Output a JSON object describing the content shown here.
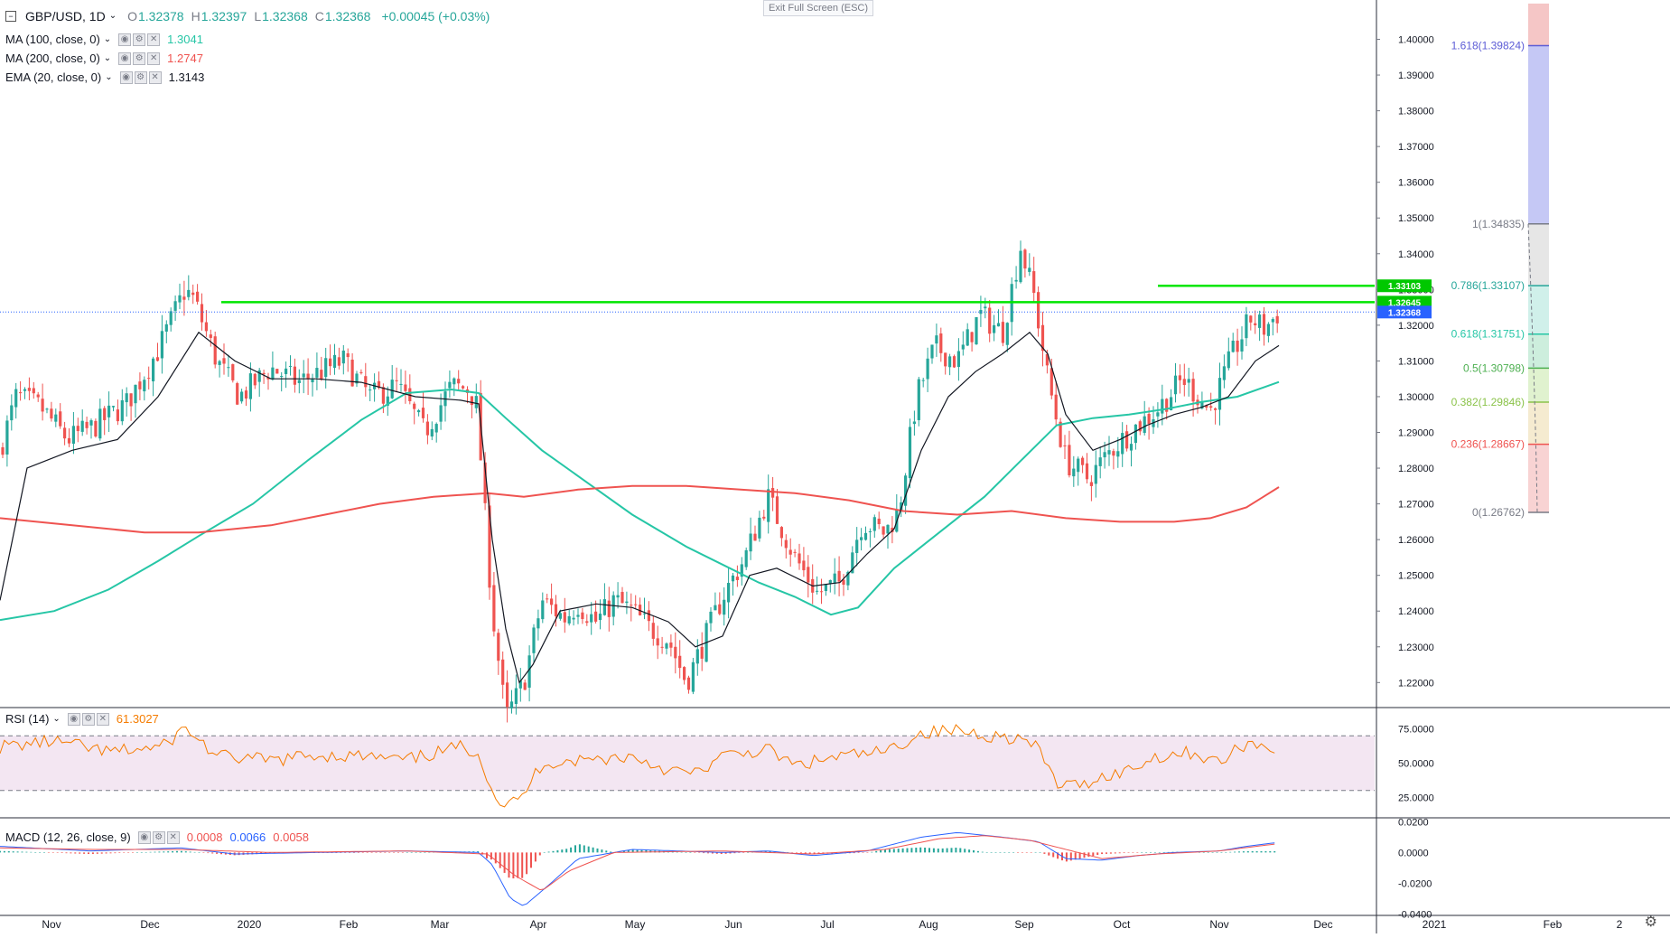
{
  "header": {
    "symbol": "GBP/USD, 1D",
    "ohlc": [
      {
        "k": "O",
        "v": "1.32378"
      },
      {
        "k": "H",
        "v": "1.32397"
      },
      {
        "k": "L",
        "v": "1.32368"
      },
      {
        "k": "C",
        "v": "1.32368"
      }
    ],
    "change": "+0.00045 (+0.03%)",
    "exit_fullscreen": "Exit Full Screen (ESC)"
  },
  "indicators": [
    {
      "label": "MA (100, close, 0)",
      "value": "1.3041",
      "color": "#26c6a6"
    },
    {
      "label": "MA (200, close, 0)",
      "value": "1.2747",
      "color": "#ef5350"
    },
    {
      "label": "EMA (20, close, 0)",
      "value": "1.3143",
      "color": "#131722"
    }
  ],
  "rsi": {
    "label": "RSI (14)",
    "value": "61.3027",
    "color": "#f57c00",
    "levels": [
      70,
      30
    ],
    "axis_labels": [
      "75.0000",
      "50.0000",
      "25.0000"
    ]
  },
  "macd": {
    "label": "MACD (12, 26, close, 9)",
    "hist": "0.0008",
    "macd": "0.0066",
    "signal": "0.0058",
    "hist_color": "#ef5350",
    "macd_color": "#2962ff",
    "signal_color": "#ef5350",
    "axis_labels": [
      "0.0200",
      "0.0000",
      "-0.0200",
      "-0.0400"
    ]
  },
  "colors": {
    "up": "#26a69a",
    "down": "#ef5350",
    "ema": "#131722",
    "ma100": "#26c6a6",
    "ma200": "#ef5350",
    "hline": "#00e600",
    "rsi": "#f57c00"
  },
  "price_axis": [
    "1.40000",
    "1.39000",
    "1.38000",
    "1.37000",
    "1.36000",
    "1.35000",
    "1.34000",
    "1.33000",
    "1.32000",
    "1.31000",
    "1.30000",
    "1.29000",
    "1.28000",
    "1.27000",
    "1.26000",
    "1.25000",
    "1.24000",
    "1.23000",
    "1.22000"
  ],
  "price_tags": [
    {
      "text": "1.33103",
      "price": 1.33103,
      "color": "#00c800"
    },
    {
      "text": "1.32645",
      "price": 1.32645,
      "color": "#00c800"
    },
    {
      "text": "1.32368",
      "price": 1.32368,
      "color": "#2962ff"
    }
  ],
  "fib": [
    {
      "label": "1.618(1.39824)",
      "price": 1.39824,
      "color": "#5c5cd6",
      "band": "#c5c8f5"
    },
    {
      "label": "1(1.34835)",
      "price": 1.34835,
      "color": "#787b86",
      "band": "#e6e6e6"
    },
    {
      "label": "0.786(1.33107)",
      "price": 1.33107,
      "color": "#26a69a",
      "band": "#d0f0ea"
    },
    {
      "label": "0.618(1.31751)",
      "price": 1.31751,
      "color": "#26c6a6",
      "band": "#cdeedd"
    },
    {
      "label": "0.5(1.30798)",
      "price": 1.30798,
      "color": "#4caf50",
      "band": "#e0f2cf"
    },
    {
      "label": "0.382(1.29846)",
      "price": 1.29846,
      "color": "#8bc34a",
      "band": "#f5ebd0"
    },
    {
      "label": "0.236(1.28667)",
      "price": 1.28667,
      "color": "#ef5350",
      "band": "#f8d3d3"
    },
    {
      "label": "0(1.26762)",
      "price": 1.26762,
      "color": "#787b86",
      "band": null
    }
  ],
  "fib_top_band_price": 1.41,
  "time_axis": [
    "Nov",
    "Dec",
    "2020",
    "Feb",
    "Mar",
    "Apr",
    "May",
    "Jun",
    "Jul",
    "Aug",
    "Sep",
    "Oct",
    "Nov",
    "Dec",
    "2021",
    "Feb",
    "2"
  ],
  "chart_data": {
    "type": "line",
    "title": "GBP/USD, 1D",
    "xlabel": "",
    "ylabel": "",
    "ylim": [
      1.213,
      1.411
    ],
    "x": [
      "2019-11",
      "2019-12",
      "2020-01",
      "2020-02",
      "2020-03",
      "2020-04",
      "2020-05",
      "2020-06",
      "2020-07",
      "2020-08",
      "2020-09",
      "2020-10",
      "2020-11"
    ],
    "series": [
      {
        "name": "MA (100, close, 0)",
        "values": [
          1.236,
          1.252,
          1.275,
          1.3,
          1.302,
          1.283,
          1.255,
          1.25,
          1.238,
          1.258,
          1.276,
          1.293,
          1.304
        ]
      },
      {
        "name": "MA (200, close, 0)",
        "values": [
          1.267,
          1.262,
          1.262,
          1.271,
          1.281,
          1.285,
          1.283,
          1.28,
          1.273,
          1.269,
          1.267,
          1.265,
          1.2747
        ]
      },
      {
        "name": "EMA (20, close, 0)",
        "values": [
          1.292,
          1.303,
          1.311,
          1.303,
          1.3,
          1.222,
          1.241,
          1.245,
          1.249,
          1.311,
          1.321,
          1.288,
          1.3143
        ]
      }
    ],
    "horizontal_lines": [
      1.32645,
      1.33103
    ]
  }
}
